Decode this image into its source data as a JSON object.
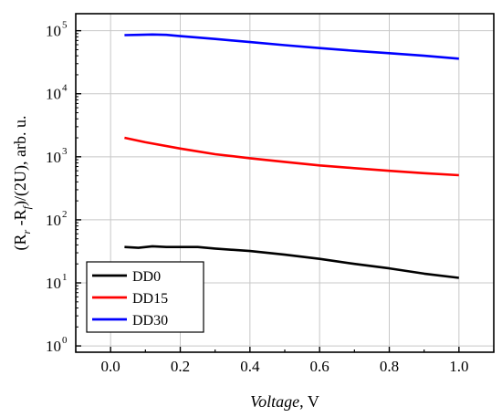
{
  "chart_data": {
    "type": "line",
    "xlabel_italic": "Voltage",
    "xlabel_unit": ", V",
    "ylabel_parts": [
      "(R",
      "r",
      " -R",
      "f",
      ")/(2U), arb. u."
    ],
    "x_ticks": [
      "0.0",
      "0.2",
      "0.4",
      "0.6",
      "0.8",
      "1.0"
    ],
    "y_ticks": [
      {
        "base": "10",
        "exp": "0"
      },
      {
        "base": "10",
        "exp": "1"
      },
      {
        "base": "10",
        "exp": "2"
      },
      {
        "base": "10",
        "exp": "3"
      },
      {
        "base": "10",
        "exp": "4"
      },
      {
        "base": "10",
        "exp": "5"
      }
    ],
    "xlim": [
      -0.1,
      1.1
    ],
    "ylim_log10": [
      -0.1,
      5.27
    ],
    "y_scale": "log",
    "grid": true,
    "legend_position": "bottom-left",
    "series": [
      {
        "name": "DD0",
        "color": "#000000",
        "x": [
          0.04,
          0.08,
          0.12,
          0.16,
          0.2,
          0.25,
          0.3,
          0.4,
          0.5,
          0.6,
          0.7,
          0.8,
          0.9,
          1.0
        ],
        "y": [
          37,
          36,
          38,
          37,
          37,
          37,
          35,
          32,
          28,
          24,
          20,
          17,
          14,
          12
        ]
      },
      {
        "name": "DD15",
        "color": "#ff0000",
        "x": [
          0.04,
          0.1,
          0.2,
          0.3,
          0.4,
          0.5,
          0.6,
          0.7,
          0.8,
          0.9,
          1.0
        ],
        "y": [
          2000,
          1700,
          1350,
          1100,
          950,
          830,
          730,
          660,
          600,
          550,
          510
        ]
      },
      {
        "name": "DD30",
        "color": "#0000ff",
        "x": [
          0.04,
          0.08,
          0.12,
          0.16,
          0.2,
          0.3,
          0.4,
          0.5,
          0.6,
          0.7,
          0.8,
          0.9,
          1.0
        ],
        "y": [
          85000,
          86000,
          87000,
          86000,
          82000,
          74000,
          66000,
          59000,
          53000,
          48000,
          44000,
          40000,
          36000
        ]
      }
    ]
  }
}
